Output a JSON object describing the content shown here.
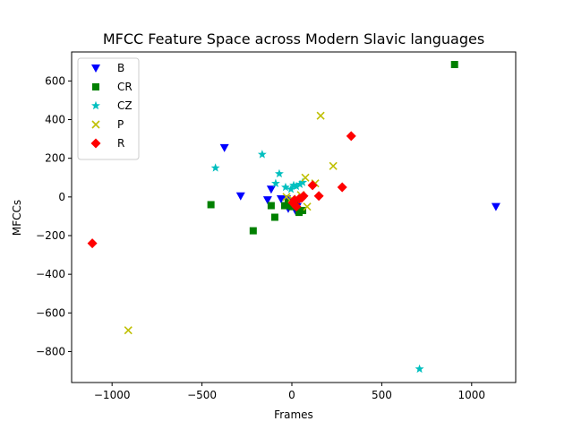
{
  "chart_data": {
    "type": "scatter",
    "title": "MFCC Feature Space across Modern Slavic languages",
    "xlabel": "Frames",
    "ylabel": "MFCCs",
    "xlim": [
      -1225,
      1245
    ],
    "ylim": [
      -960,
      750
    ],
    "xticks": [
      -1000,
      -500,
      0,
      500,
      1000
    ],
    "xtick_labels": [
      "−1000",
      "−500",
      "0",
      "500",
      "1000"
    ],
    "yticks": [
      -800,
      -600,
      -400,
      -200,
      0,
      200,
      400,
      600
    ],
    "ytick_labels": [
      "−800",
      "−600",
      "−400",
      "−200",
      "0",
      "200",
      "400",
      "600"
    ],
    "grid": false,
    "legend_position": "top-left",
    "series": [
      {
        "name": "B",
        "marker": "triangle-down",
        "color": "#0000ff",
        "points": [
          [
            -375,
            255
          ],
          [
            -285,
            5
          ],
          [
            -135,
            -15
          ],
          [
            -115,
            40
          ],
          [
            -60,
            -10
          ],
          [
            -30,
            -10
          ],
          [
            -20,
            -60
          ],
          [
            -10,
            -25
          ],
          [
            10,
            -40
          ],
          [
            20,
            -70
          ],
          [
            30,
            -50
          ],
          [
            1135,
            -50
          ]
        ]
      },
      {
        "name": "CR",
        "marker": "square",
        "color": "#008000",
        "points": [
          [
            -450,
            -40
          ],
          [
            -215,
            -175
          ],
          [
            -115,
            -45
          ],
          [
            -95,
            -105
          ],
          [
            -40,
            -45
          ],
          [
            -20,
            -30
          ],
          [
            0,
            -50
          ],
          [
            15,
            -40
          ],
          [
            40,
            -80
          ],
          [
            60,
            -70
          ],
          [
            905,
            685
          ]
        ]
      },
      {
        "name": "CZ",
        "marker": "star",
        "color": "#00bfbf",
        "points": [
          [
            -425,
            150
          ],
          [
            -165,
            220
          ],
          [
            -90,
            70
          ],
          [
            -70,
            120
          ],
          [
            -35,
            50
          ],
          [
            -5,
            40
          ],
          [
            10,
            60
          ],
          [
            25,
            55
          ],
          [
            45,
            65
          ],
          [
            60,
            75
          ],
          [
            710,
            -890
          ]
        ]
      },
      {
        "name": "P",
        "marker": "x",
        "color": "#bfbf00",
        "points": [
          [
            -910,
            -690
          ],
          [
            -30,
            0
          ],
          [
            0,
            -10
          ],
          [
            20,
            -30
          ],
          [
            50,
            10
          ],
          [
            75,
            100
          ],
          [
            85,
            -50
          ],
          [
            130,
            70
          ],
          [
            160,
            420
          ],
          [
            230,
            160
          ]
        ]
      },
      {
        "name": "R",
        "marker": "diamond",
        "color": "#ff0000",
        "points": [
          [
            -1110,
            -240
          ],
          [
            5,
            -30
          ],
          [
            15,
            -15
          ],
          [
            25,
            -50
          ],
          [
            40,
            -10
          ],
          [
            55,
            -5
          ],
          [
            65,
            5
          ],
          [
            115,
            60
          ],
          [
            150,
            5
          ],
          [
            280,
            50
          ],
          [
            330,
            315
          ]
        ]
      }
    ]
  }
}
